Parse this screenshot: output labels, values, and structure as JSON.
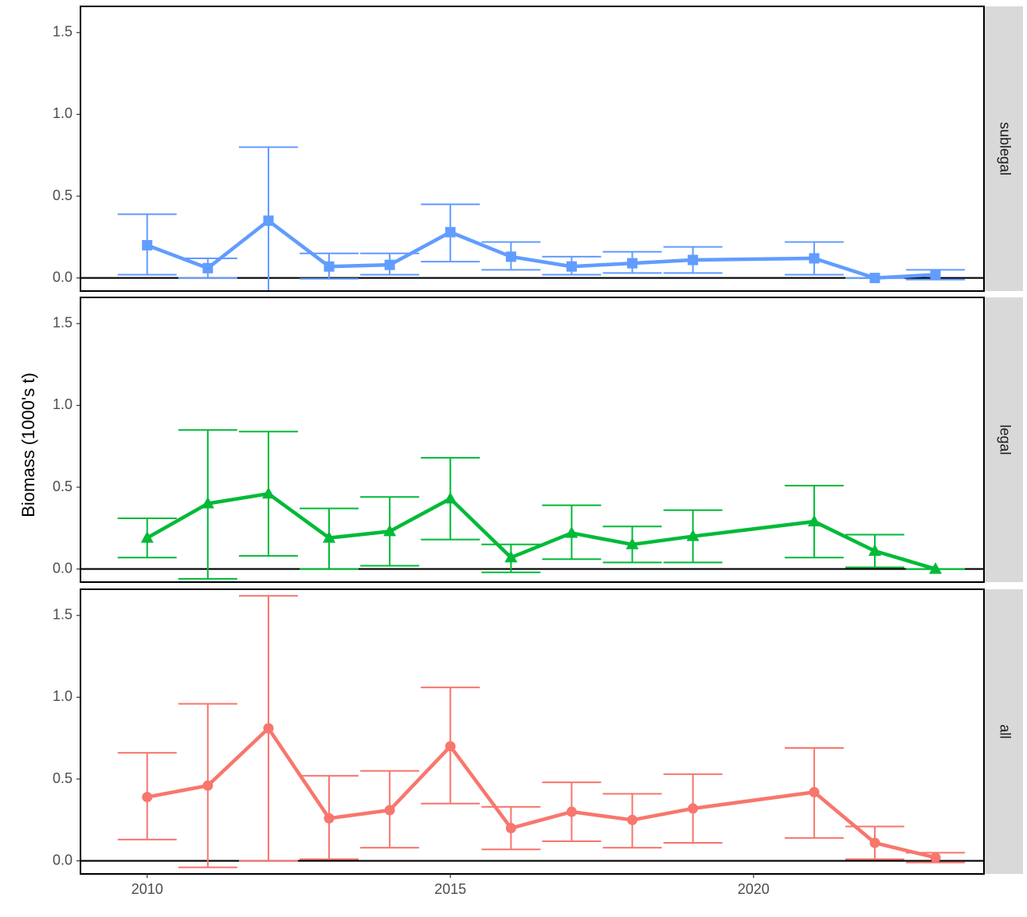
{
  "chart_data": {
    "type": "line",
    "ylabel": "Biomass (1000's t)",
    "xlabel": "",
    "xlim": [
      2008.9,
      2023.8
    ],
    "ylim": [
      -0.08,
      1.66
    ],
    "x_ticks": [
      2010,
      2015,
      2020
    ],
    "y_ticks": [
      0.0,
      0.5,
      1.0,
      1.5
    ],
    "y_tick_labels": [
      "0.0",
      "0.5",
      "1.0",
      "1.5"
    ],
    "grid": false,
    "reference_line": 0,
    "facets": [
      {
        "label": "sublegal",
        "color": "#619CFF",
        "marker": "square",
        "points": [
          {
            "x": 2010,
            "y": 0.2,
            "lo": 0.02,
            "hi": 0.39
          },
          {
            "x": 2011,
            "y": 0.06,
            "lo": 0.0,
            "hi": 0.12
          },
          {
            "x": 2012,
            "y": 0.35,
            "lo": -0.1,
            "hi": 0.8
          },
          {
            "x": 2013,
            "y": 0.07,
            "lo": -0.005,
            "hi": 0.15
          },
          {
            "x": 2014,
            "y": 0.08,
            "lo": 0.02,
            "hi": 0.15
          },
          {
            "x": 2015,
            "y": 0.28,
            "lo": 0.1,
            "hi": 0.45
          },
          {
            "x": 2016,
            "y": 0.13,
            "lo": 0.05,
            "hi": 0.22
          },
          {
            "x": 2017,
            "y": 0.07,
            "lo": 0.02,
            "hi": 0.13
          },
          {
            "x": 2018,
            "y": 0.09,
            "lo": 0.03,
            "hi": 0.16
          },
          {
            "x": 2019,
            "y": 0.11,
            "lo": 0.03,
            "hi": 0.19
          },
          {
            "x": 2021,
            "y": 0.12,
            "lo": 0.02,
            "hi": 0.22
          },
          {
            "x": 2022,
            "y": 0.0,
            "lo": 0.0,
            "hi": 0.0
          },
          {
            "x": 2023,
            "y": 0.02,
            "lo": -0.01,
            "hi": 0.05
          }
        ]
      },
      {
        "label": "legal",
        "color": "#00BA38",
        "marker": "triangle",
        "points": [
          {
            "x": 2010,
            "y": 0.19,
            "lo": 0.07,
            "hi": 0.31
          },
          {
            "x": 2011,
            "y": 0.4,
            "lo": -0.06,
            "hi": 0.85
          },
          {
            "x": 2012,
            "y": 0.46,
            "lo": 0.08,
            "hi": 0.84
          },
          {
            "x": 2013,
            "y": 0.19,
            "lo": 0.0,
            "hi": 0.37
          },
          {
            "x": 2014,
            "y": 0.23,
            "lo": 0.02,
            "hi": 0.44
          },
          {
            "x": 2015,
            "y": 0.43,
            "lo": 0.18,
            "hi": 0.68
          },
          {
            "x": 2016,
            "y": 0.07,
            "lo": -0.02,
            "hi": 0.15
          },
          {
            "x": 2017,
            "y": 0.22,
            "lo": 0.06,
            "hi": 0.39
          },
          {
            "x": 2018,
            "y": 0.15,
            "lo": 0.04,
            "hi": 0.26
          },
          {
            "x": 2019,
            "y": 0.2,
            "lo": 0.04,
            "hi": 0.36
          },
          {
            "x": 2021,
            "y": 0.29,
            "lo": 0.07,
            "hi": 0.51
          },
          {
            "x": 2022,
            "y": 0.11,
            "lo": 0.01,
            "hi": 0.21
          },
          {
            "x": 2023,
            "y": 0.0,
            "lo": 0.0,
            "hi": 0.0
          }
        ]
      },
      {
        "label": "all",
        "color": "#F8766D",
        "marker": "circle",
        "points": [
          {
            "x": 2010,
            "y": 0.39,
            "lo": 0.13,
            "hi": 0.66
          },
          {
            "x": 2011,
            "y": 0.46,
            "lo": -0.04,
            "hi": 0.96
          },
          {
            "x": 2012,
            "y": 0.81,
            "lo": 0.0,
            "hi": 1.62
          },
          {
            "x": 2013,
            "y": 0.26,
            "lo": 0.01,
            "hi": 0.52
          },
          {
            "x": 2014,
            "y": 0.31,
            "lo": 0.08,
            "hi": 0.55
          },
          {
            "x": 2015,
            "y": 0.7,
            "lo": 0.35,
            "hi": 1.06
          },
          {
            "x": 2016,
            "y": 0.2,
            "lo": 0.07,
            "hi": 0.33
          },
          {
            "x": 2017,
            "y": 0.3,
            "lo": 0.12,
            "hi": 0.48
          },
          {
            "x": 2018,
            "y": 0.25,
            "lo": 0.08,
            "hi": 0.41
          },
          {
            "x": 2019,
            "y": 0.32,
            "lo": 0.11,
            "hi": 0.53
          },
          {
            "x": 2021,
            "y": 0.42,
            "lo": 0.14,
            "hi": 0.69
          },
          {
            "x": 2022,
            "y": 0.11,
            "lo": 0.01,
            "hi": 0.21
          },
          {
            "x": 2023,
            "y": 0.02,
            "lo": -0.01,
            "hi": 0.05
          }
        ]
      }
    ]
  }
}
